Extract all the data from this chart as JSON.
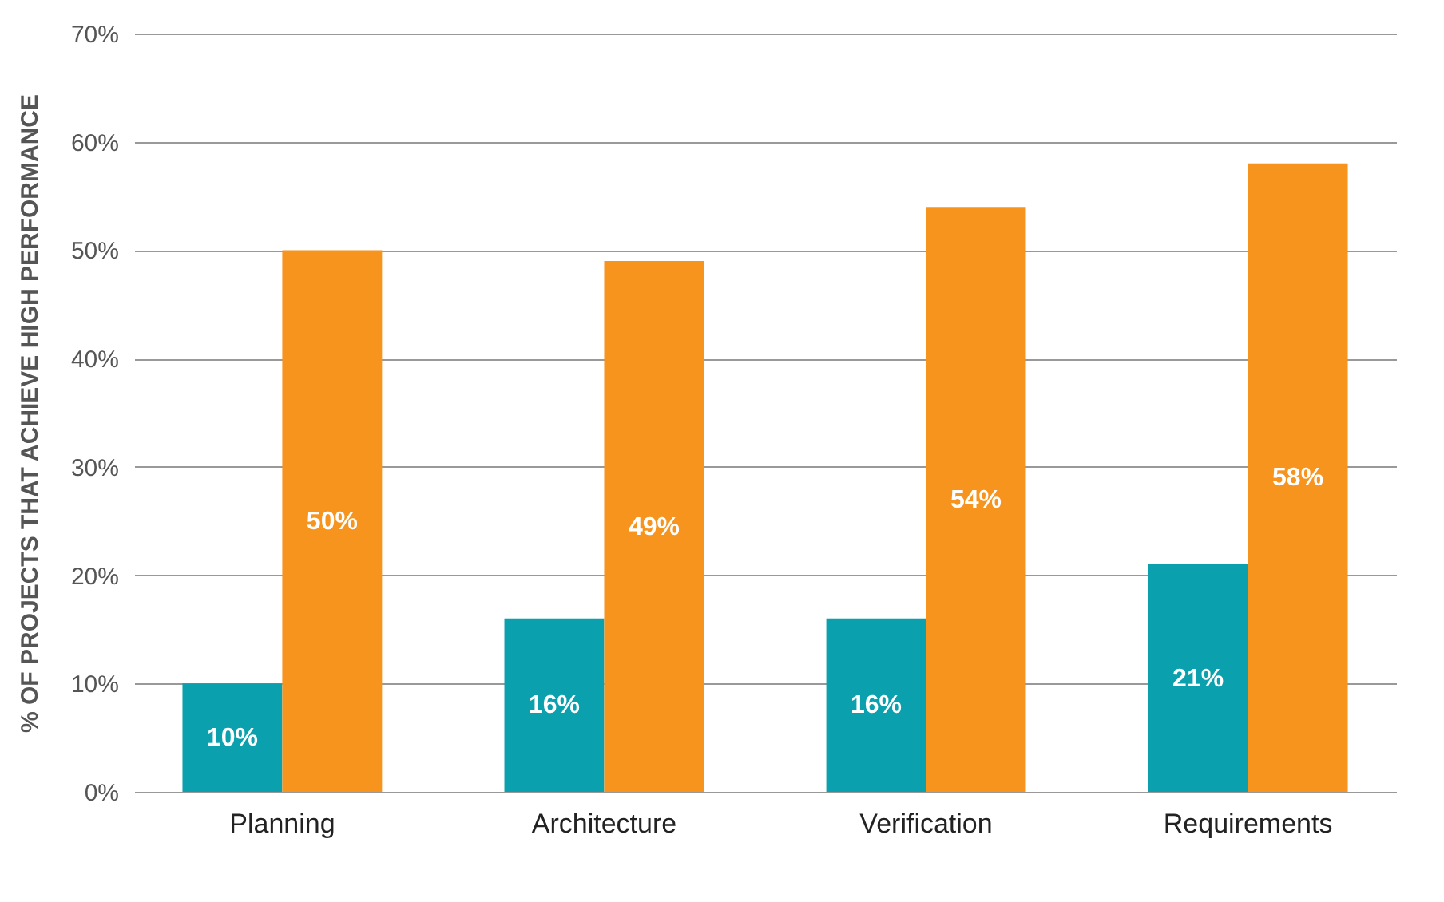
{
  "chart_data": {
    "type": "bar",
    "ylabel": "% OF PROJECTS THAT ACHIEVE HIGH PERFORMANCE",
    "categories": [
      "Planning",
      "Architecture",
      "Verification",
      "Requirements"
    ],
    "series": [
      {
        "color": "#0aa0ad",
        "values": [
          10,
          16,
          16,
          21
        ],
        "value_labels": [
          "10%",
          "16%",
          "16%",
          "21%"
        ]
      },
      {
        "color": "#f7941d",
        "values": [
          50,
          49,
          54,
          58
        ],
        "value_labels": [
          "50%",
          "49%",
          "54%",
          "58%"
        ]
      }
    ],
    "ylim": [
      0,
      70
    ],
    "yticks": [
      {
        "value": 0,
        "label": "0%"
      },
      {
        "value": 10,
        "label": "10%"
      },
      {
        "value": 20,
        "label": "20%"
      },
      {
        "value": 30,
        "label": "30%"
      },
      {
        "value": 40,
        "label": "40%"
      },
      {
        "value": 50,
        "label": "50%"
      },
      {
        "value": 60,
        "label": "60%"
      },
      {
        "value": 70,
        "label": "70%"
      }
    ],
    "grid": "y",
    "legend": false
  }
}
